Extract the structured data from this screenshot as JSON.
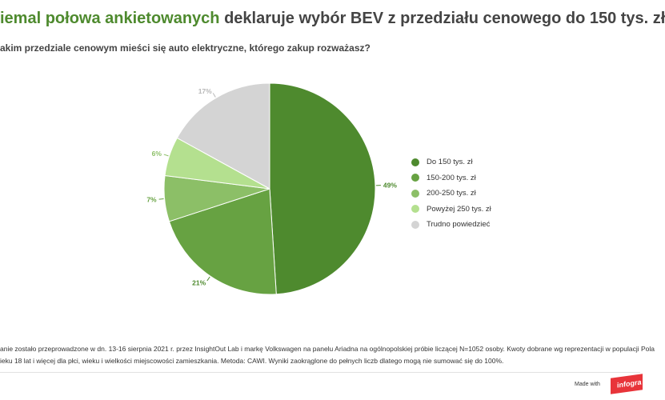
{
  "header": {
    "title_highlight": "iemal połowa ankietowanych",
    "title_rest": " deklaruje wybór BEV z przedziału cenowego do 150 tys. zł",
    "subtitle": "akim przedziale cenowym mieści się auto elektryczne, którego zakup rozważasz?"
  },
  "chart_data": {
    "type": "pie",
    "title": "",
    "categories": [
      "Do 150 tys. zł",
      "150-200 tys. zł",
      "200-250 tys. zł",
      "Powyżej 250 tys. zł",
      "Trudno powiedzieć"
    ],
    "values": [
      49,
      21,
      7,
      6,
      17
    ],
    "labels": [
      "49%",
      "21%",
      "7%",
      "6%",
      "17%"
    ],
    "colors": [
      "#4e8a2e",
      "#67a242",
      "#8cbf67",
      "#b4e08f",
      "#d4d4d4"
    ],
    "label_colors": [
      "#4e8a2e",
      "#4e8a2e",
      "#67a242",
      "#8cbf67",
      "#b8b8b8"
    ],
    "start_at": "top, clockwise",
    "legend_position": "right"
  },
  "legend": {
    "items": [
      {
        "label": "Do 150 tys. zł",
        "color": "#4e8a2e"
      },
      {
        "label": "150-200 tys. zł",
        "color": "#67a242"
      },
      {
        "label": "200-250 tys. zł",
        "color": "#8cbf67"
      },
      {
        "label": "Powyżej 250 tys. zł",
        "color": "#b4e08f"
      },
      {
        "label": "Trudno powiedzieć",
        "color": "#d4d4d4"
      }
    ]
  },
  "footnote": {
    "line1": "anie zostało przeprowadzone w dn. 13-16 sierpnia 2021 r. przez InsightOut Lab i markę Volkswagen na panelu Ariadna na ogólnopolskiej próbie liczącej N=1052 osoby. Kwoty dobrane wg reprezentacji w populacji Pola",
    "line2": "ieku 18 lat i więcej dla płci, wieku i wielkości miejscowości zamieszkania. Metoda: CAWI. Wyniki zaokrąglone do pełnych liczb dlatego mogą nie sumować się do 100%."
  },
  "footer": {
    "made_with": "Made with",
    "brand": "infogra"
  }
}
